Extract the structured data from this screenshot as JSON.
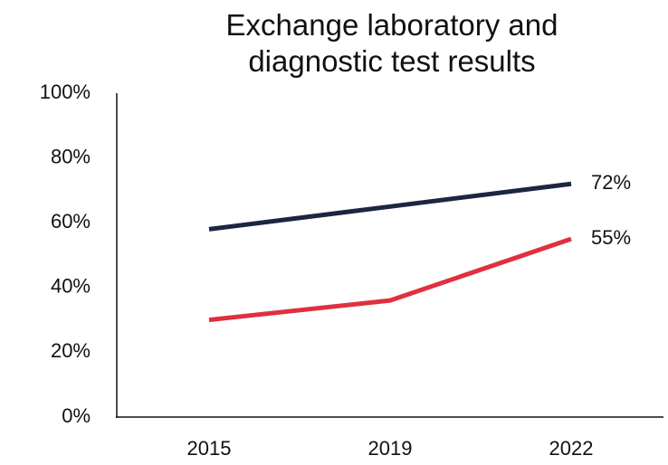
{
  "chart_data": {
    "type": "line",
    "title": "Exchange laboratory and diagnostic test results",
    "categories": [
      "2015",
      "2019",
      "2022"
    ],
    "series": [
      {
        "color": "#1b2642",
        "values": [
          58,
          65,
          72
        ],
        "value_labels": [
          null,
          null,
          "72%"
        ]
      },
      {
        "color": "#e0303f",
        "values": [
          30,
          36,
          55
        ],
        "value_labels": [
          null,
          null,
          "55%"
        ]
      }
    ],
    "ylim": [
      0,
      100
    ],
    "yticks": [
      {
        "value": 0,
        "label": "0%"
      },
      {
        "value": 20,
        "label": "20%"
      },
      {
        "value": 40,
        "label": "40%"
      },
      {
        "value": 60,
        "label": "60%"
      },
      {
        "value": 80,
        "label": "80%"
      },
      {
        "value": 100,
        "label": "100%"
      }
    ],
    "grid": false
  }
}
